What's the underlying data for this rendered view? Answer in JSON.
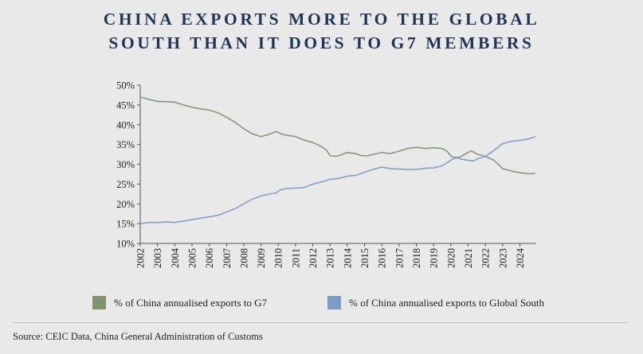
{
  "title": {
    "line1": "CHINA EXPORTS MORE TO THE GLOBAL",
    "line2": "SOUTH THAN IT DOES TO G7 MEMBERS"
  },
  "source": "Source: CEIC Data, China General Administration of Customs",
  "colors": {
    "g7": "#7e9570",
    "global_south": "#7a9cc6",
    "title": "#1e3557",
    "axis": "#555555",
    "background": "#e9e9e9"
  },
  "chart_data": {
    "type": "line",
    "title": "CHINA EXPORTS MORE TO THE GLOBAL SOUTH THAN IT DOES TO G7 MEMBERS",
    "xlabel": "",
    "ylabel": "",
    "x_ticks": [
      "2002",
      "2003",
      "2004",
      "2005",
      "2006",
      "2007",
      "2008",
      "2009",
      "2010",
      "2011",
      "2012",
      "2013",
      "2014",
      "2015",
      "2016",
      "2017",
      "2018",
      "2019",
      "2020",
      "2021",
      "2022",
      "2023",
      "2024"
    ],
    "ylim": [
      10,
      50
    ],
    "y_ticks": [
      "10%",
      "15%",
      "20%",
      "25%",
      "30%",
      "35%",
      "40%",
      "45%",
      "50%"
    ],
    "grid": false,
    "legend_position": "bottom",
    "series": [
      {
        "name": "% of China annualised exports to G7",
        "color": "#7e9570",
        "points": [
          [
            2002.0,
            47.0
          ],
          [
            2002.5,
            46.4
          ],
          [
            2003.0,
            45.9
          ],
          [
            2003.5,
            45.8
          ],
          [
            2004.0,
            45.7
          ],
          [
            2004.5,
            45.0
          ],
          [
            2005.0,
            44.4
          ],
          [
            2005.5,
            44.0
          ],
          [
            2006.0,
            43.7
          ],
          [
            2006.5,
            43.0
          ],
          [
            2007.0,
            41.9
          ],
          [
            2007.5,
            40.6
          ],
          [
            2008.0,
            39.0
          ],
          [
            2008.5,
            37.7
          ],
          [
            2009.0,
            37.0
          ],
          [
            2009.5,
            37.6
          ],
          [
            2009.9,
            38.3
          ],
          [
            2010.2,
            37.6
          ],
          [
            2010.5,
            37.3
          ],
          [
            2011.0,
            37.0
          ],
          [
            2011.5,
            36.1
          ],
          [
            2012.0,
            35.5
          ],
          [
            2012.5,
            34.5
          ],
          [
            2012.8,
            33.5
          ],
          [
            2013.0,
            32.2
          ],
          [
            2013.3,
            32.0
          ],
          [
            2013.6,
            32.3
          ],
          [
            2014.0,
            33.0
          ],
          [
            2014.5,
            32.7
          ],
          [
            2014.8,
            32.2
          ],
          [
            2015.1,
            32.1
          ],
          [
            2015.5,
            32.5
          ],
          [
            2016.0,
            33.0
          ],
          [
            2016.5,
            32.7
          ],
          [
            2017.0,
            33.3
          ],
          [
            2017.5,
            34.0
          ],
          [
            2018.0,
            34.3
          ],
          [
            2018.5,
            34.0
          ],
          [
            2019.0,
            34.2
          ],
          [
            2019.5,
            34.0
          ],
          [
            2019.8,
            33.2
          ],
          [
            2020.0,
            32.1
          ],
          [
            2020.3,
            31.5
          ],
          [
            2020.6,
            32.0
          ],
          [
            2021.0,
            33.0
          ],
          [
            2021.2,
            33.4
          ],
          [
            2021.5,
            32.6
          ],
          [
            2022.0,
            32.0
          ],
          [
            2022.5,
            31.0
          ],
          [
            2022.8,
            29.8
          ],
          [
            2023.0,
            28.9
          ],
          [
            2023.5,
            28.3
          ],
          [
            2024.0,
            27.9
          ],
          [
            2024.5,
            27.6
          ],
          [
            2024.9,
            27.7
          ]
        ]
      },
      {
        "name": "% of China annualised exports to Global South",
        "color": "#7a9cc6",
        "points": [
          [
            2002.0,
            15.0
          ],
          [
            2002.5,
            15.3
          ],
          [
            2003.0,
            15.3
          ],
          [
            2003.5,
            15.4
          ],
          [
            2004.0,
            15.3
          ],
          [
            2004.5,
            15.6
          ],
          [
            2005.0,
            16.0
          ],
          [
            2005.5,
            16.4
          ],
          [
            2006.0,
            16.7
          ],
          [
            2006.5,
            17.1
          ],
          [
            2007.0,
            17.9
          ],
          [
            2007.5,
            18.8
          ],
          [
            2008.0,
            20.0
          ],
          [
            2008.5,
            21.2
          ],
          [
            2009.0,
            22.0
          ],
          [
            2009.5,
            22.5
          ],
          [
            2009.9,
            22.8
          ],
          [
            2010.1,
            23.5
          ],
          [
            2010.5,
            23.9
          ],
          [
            2011.0,
            24.0
          ],
          [
            2011.5,
            24.1
          ],
          [
            2012.0,
            25.0
          ],
          [
            2012.5,
            25.5
          ],
          [
            2013.0,
            26.2
          ],
          [
            2013.5,
            26.4
          ],
          [
            2014.0,
            27.0
          ],
          [
            2014.5,
            27.2
          ],
          [
            2015.0,
            28.0
          ],
          [
            2015.5,
            28.7
          ],
          [
            2016.0,
            29.3
          ],
          [
            2016.5,
            28.9
          ],
          [
            2017.0,
            28.8
          ],
          [
            2017.5,
            28.7
          ],
          [
            2018.0,
            28.7
          ],
          [
            2018.5,
            29.0
          ],
          [
            2019.0,
            29.1
          ],
          [
            2019.5,
            29.6
          ],
          [
            2020.0,
            31.0
          ],
          [
            2020.3,
            31.8
          ],
          [
            2020.6,
            31.3
          ],
          [
            2021.0,
            31.0
          ],
          [
            2021.3,
            30.8
          ],
          [
            2021.6,
            31.5
          ],
          [
            2022.0,
            32.0
          ],
          [
            2022.5,
            33.5
          ],
          [
            2022.8,
            34.5
          ],
          [
            2023.0,
            35.2
          ],
          [
            2023.5,
            35.8
          ],
          [
            2024.0,
            36.0
          ],
          [
            2024.5,
            36.4
          ],
          [
            2024.9,
            37.0
          ]
        ]
      }
    ]
  }
}
